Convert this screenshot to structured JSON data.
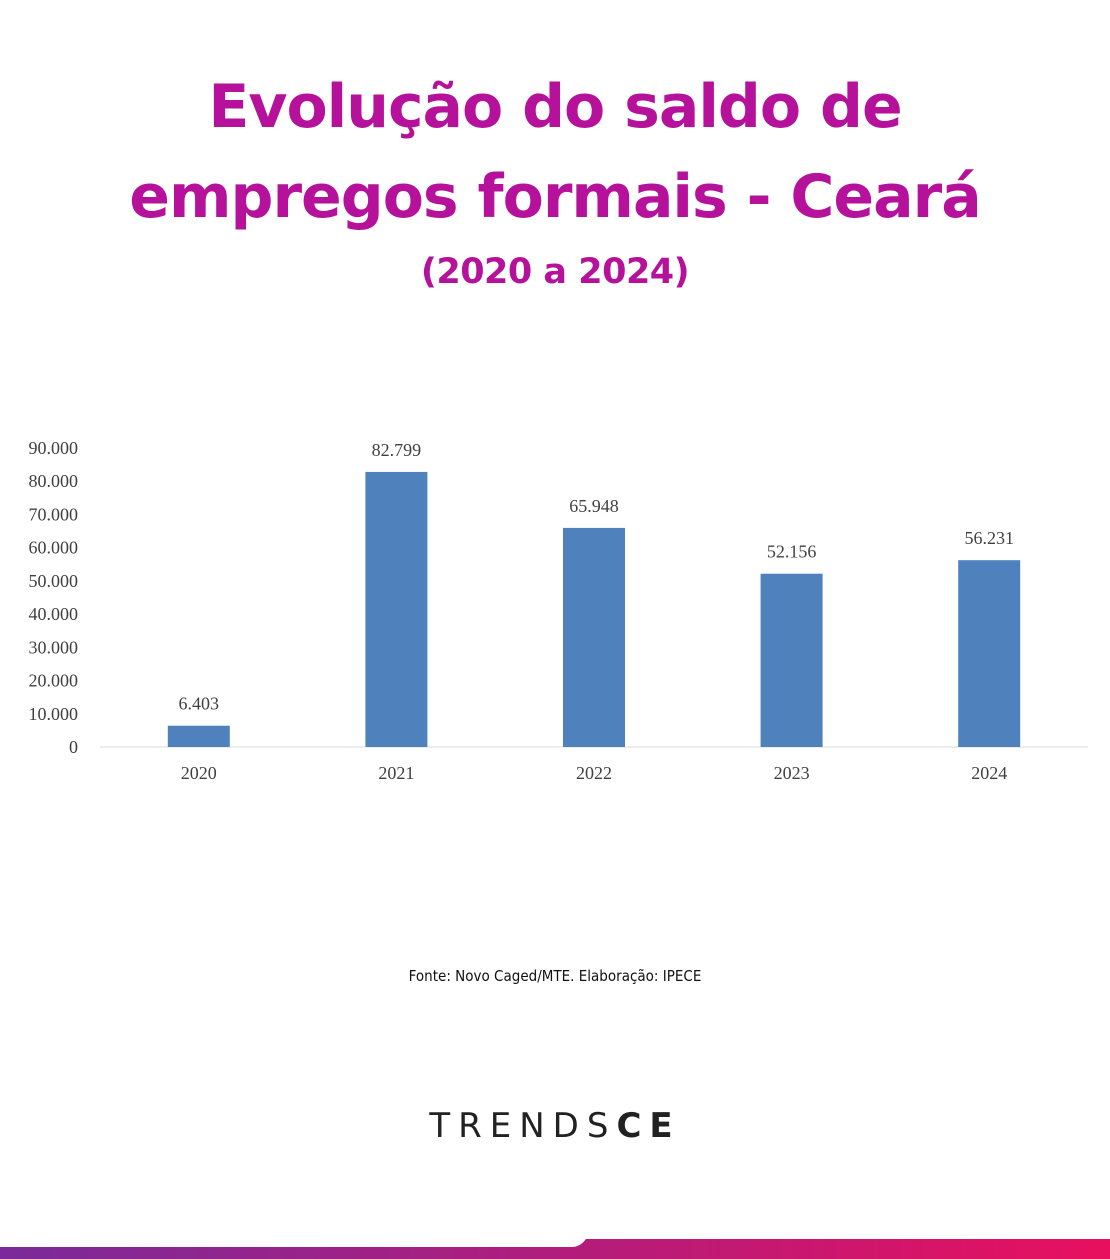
{
  "header": {
    "title_line1": "Evolução do saldo de",
    "title_line2": "empregos formais - Ceará",
    "subtitle": "(2020 a 2024)"
  },
  "chart_data": {
    "type": "bar",
    "categories": [
      "2020",
      "2021",
      "2022",
      "2023",
      "2024"
    ],
    "values": [
      6403,
      82799,
      65948,
      52156,
      56231
    ],
    "data_labels": [
      "6.403",
      "82.799",
      "65.948",
      "52.156",
      "56.231"
    ],
    "y_ticks": [
      "0",
      "10.000",
      "20.000",
      "30.000",
      "40.000",
      "50.000",
      "60.000",
      "70.000",
      "80.000",
      "90.000"
    ],
    "ylim": [
      0,
      90000
    ],
    "y_tick_step": 10000,
    "bar_color": "#4f81bd",
    "grid": false,
    "legend": "none"
  },
  "footer": {
    "source": "Fonte: Novo Caged/MTE. Elaboração: IPECE",
    "brand_light": "TRENDS",
    "brand_bold": "CE"
  },
  "colors": {
    "title": "#b5119a",
    "gradient_start": "#7a2a9a",
    "gradient_end": "#e8105e"
  }
}
